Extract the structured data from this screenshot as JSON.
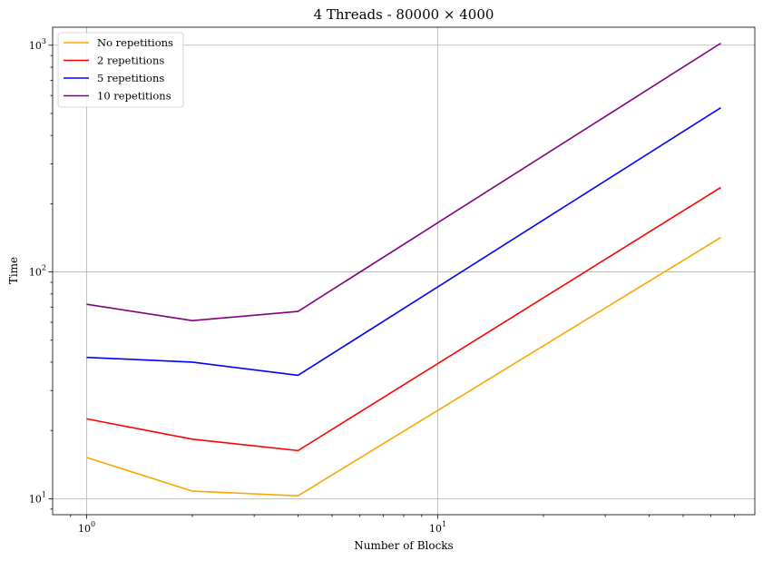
{
  "chart_data": {
    "type": "line",
    "title": "4 Threads - 80000 × 4000",
    "xlabel": "Number of Blocks",
    "ylabel": "Time",
    "xscale": "log",
    "yscale": "log",
    "xlim": [
      0.8,
      80
    ],
    "ylim": [
      8.5,
      1200
    ],
    "grid": true,
    "legend_position": "top-left",
    "x": [
      1,
      2,
      4,
      64
    ],
    "series": [
      {
        "name": "No repetitions",
        "color": "#ffa500",
        "values": [
          15.2,
          10.8,
          10.3,
          142
        ]
      },
      {
        "name": "2 repetitions",
        "color": "#ff0000",
        "values": [
          22.5,
          18.3,
          16.3,
          236
        ]
      },
      {
        "name": "5 repetitions",
        "color": "#0000ff",
        "values": [
          42,
          40,
          35,
          530
        ]
      },
      {
        "name": "10 repetitions",
        "color": "#800080",
        "values": [
          72,
          61,
          67,
          1020
        ]
      }
    ],
    "x_ticks": [
      {
        "value": 1,
        "base": "10",
        "exp": "0"
      },
      {
        "value": 10,
        "base": "10",
        "exp": "1"
      }
    ],
    "y_ticks": [
      {
        "value": 10,
        "base": "10",
        "exp": "1"
      },
      {
        "value": 100,
        "base": "10",
        "exp": "2"
      },
      {
        "value": 1000,
        "base": "10",
        "exp": "3"
      }
    ]
  }
}
